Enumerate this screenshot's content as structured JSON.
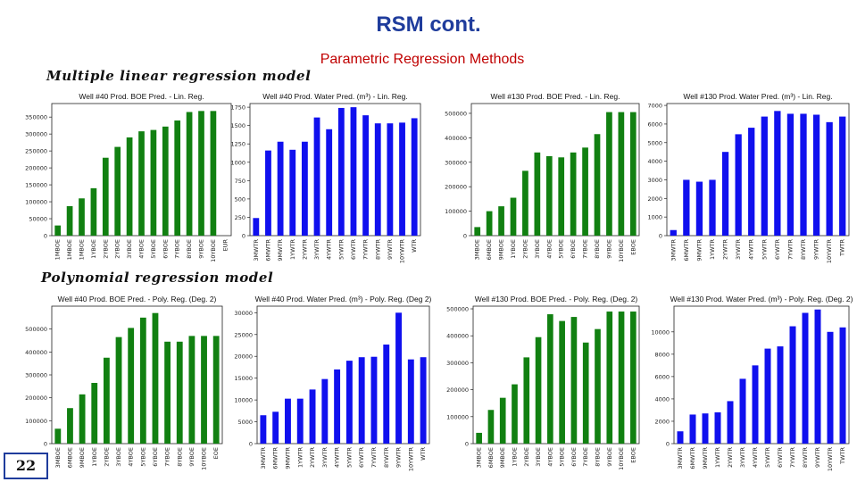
{
  "slide": {
    "title": "RSM cont.",
    "subtitle": "Parametric Regression Methods",
    "page_number": "22"
  },
  "sections": {
    "linear": "Multiple linear regression model",
    "poly": "Polynomial regression model"
  },
  "colors": {
    "green": "#118011",
    "blue": "#1010ee",
    "title": "#1f3c9c",
    "subtitle": "#c00000"
  },
  "chart_data": [
    {
      "type": "bar",
      "title": "Well #40 Prod. BOE Pred. - Lin. Reg.",
      "color": "#118011",
      "categories": [
        "1MBOE",
        "1MBOE",
        "1MBOE",
        "1YBOE",
        "2YBOE",
        "2YBOE",
        "3YBOE",
        "4YBOE",
        "5YBOE",
        "6YBOE",
        "7YBOE",
        "8YBOE",
        "9YBOE",
        "10YBOE",
        "EUR"
      ],
      "values": [
        30000,
        87000,
        110000,
        140000,
        230000,
        262000,
        290000,
        308000,
        312000,
        322000,
        340000,
        365000,
        368000,
        368000,
        0
      ],
      "yticks": [
        0,
        50000,
        100000,
        150000,
        200000,
        250000,
        300000,
        350000
      ],
      "ylim": [
        0,
        390000
      ]
    },
    {
      "type": "bar",
      "title": "Well #40 Prod. Water Pred. (m³) - Lin. Reg.",
      "color": "#1010ee",
      "categories": [
        "3MWTR",
        "6MWTR",
        "9MWTR",
        "1YWTR",
        "2YWTR",
        "3YWTR",
        "4YWTR",
        "5YWTR",
        "6YWTR",
        "7YWTR",
        "8YWTR",
        "9YWTR",
        "10YWTR",
        "WTR"
      ],
      "values": [
        240,
        1160,
        1280,
        1170,
        1280,
        1610,
        1450,
        1740,
        1750,
        1640,
        1530,
        1530,
        1540,
        1600
      ],
      "yticks": [
        0,
        250,
        500,
        750,
        1000,
        1250,
        1500,
        1750
      ],
      "ylim": [
        0,
        1800
      ]
    },
    {
      "type": "bar",
      "title": "Well #130 Prod. BOE Pred. - Lin. Reg.",
      "color": "#118011",
      "categories": [
        "3MBOE",
        "6MBOE",
        "9MBOE",
        "1YBOE",
        "2YBOE",
        "3YBOE",
        "4YBOE",
        "5YBOE",
        "6YBOE",
        "7YBOE",
        "8YBOE",
        "9YBOE",
        "10YBOE",
        "EBOE"
      ],
      "values": [
        35000,
        100000,
        120000,
        155000,
        265000,
        340000,
        325000,
        320000,
        340000,
        360000,
        415000,
        505000,
        505000,
        505000
      ],
      "yticks": [
        0,
        100000,
        200000,
        300000,
        400000,
        500000
      ],
      "ylim": [
        0,
        540000
      ]
    },
    {
      "type": "bar",
      "title": "Well #130 Prod. Water Pred. (m³) - Lin. Reg.",
      "color": "#1010ee",
      "categories": [
        "3MWTR",
        "6MWTR",
        "9MWTR",
        "1YWTR",
        "2YWTR",
        "3YWTR",
        "4YWTR",
        "5YWTR",
        "6YWTR",
        "7YWTR",
        "8YWTR",
        "9YWTR",
        "10YWTR",
        "TWTR"
      ],
      "values": [
        300,
        3000,
        2900,
        3000,
        4500,
        5450,
        5800,
        6400,
        6700,
        6550,
        6550,
        6500,
        6100,
        6400
      ],
      "yticks": [
        0,
        1000,
        2000,
        3000,
        4000,
        5000,
        6000,
        7000
      ],
      "ylim": [
        0,
        7100
      ]
    },
    {
      "type": "bar",
      "title": "Well #40 Prod. BOE Pred. - Poly. Reg. (Deg. 2)",
      "color": "#118011",
      "categories": [
        "3MBOE",
        "6MBOE",
        "9MBOE",
        "1YBOE",
        "2YBOE",
        "3YBOE",
        "4YBOE",
        "5YBOE",
        "6YBOE",
        "7YBOE",
        "8YBOE",
        "9YBOE",
        "10YBOE",
        "EOE"
      ],
      "values": [
        65000,
        155000,
        215000,
        265000,
        375000,
        465000,
        505000,
        550000,
        570000,
        445000,
        445000,
        470000,
        470000,
        470000
      ],
      "yticks": [
        0,
        100000,
        200000,
        300000,
        400000,
        500000
      ],
      "ylim": [
        0,
        600000
      ]
    },
    {
      "type": "bar",
      "title": "Well #40 Prod. Water Pred. (m³) - Poly. Reg. (Deg 2)",
      "color": "#1010ee",
      "categories": [
        "3MWTR",
        "6MWTR",
        "9MWTR",
        "1YWTR",
        "2YWTR",
        "3YWTR",
        "4YWTR",
        "5YWTR",
        "6YWTR",
        "7YWTR",
        "8YWTR",
        "9YWTR",
        "10YWTR",
        "WTR"
      ],
      "values": [
        6500,
        7300,
        10300,
        10300,
        12400,
        14800,
        17000,
        19000,
        19800,
        19900,
        22700,
        30000,
        19300,
        19800
      ],
      "yticks": [
        0,
        5000,
        10000,
        15000,
        20000,
        25000,
        30000
      ],
      "ylim": [
        0,
        31500
      ]
    },
    {
      "type": "bar",
      "title": "Well #130 Prod. BOE Pred. - Poly. Reg. (Deg. 2)",
      "color": "#118011",
      "categories": [
        "3MBOE",
        "6MBOE",
        "9MBOE",
        "1YBOE",
        "2YBOE",
        "3YBOE",
        "4YBOE",
        "5YBOE",
        "6YBOE",
        "7YBOE",
        "8YBOE",
        "9YBOE",
        "10YBOE",
        "EBOE"
      ],
      "values": [
        40000,
        125000,
        170000,
        220000,
        320000,
        395000,
        480000,
        455000,
        470000,
        375000,
        425000,
        490000,
        490000,
        490000
      ],
      "yticks": [
        0,
        100000,
        200000,
        300000,
        400000,
        500000
      ],
      "ylim": [
        0,
        510000
      ]
    },
    {
      "type": "bar",
      "title": "Well #130 Prod. Water Pred. (m³) - Poly. Reg. (Deg. 2)",
      "color": "#1010ee",
      "categories": [
        "3MWTR",
        "6MWTR",
        "9MWTR",
        "1YWTR",
        "2YWTR",
        "3YWTR",
        "4YWTR",
        "5YWTR",
        "6YWTR",
        "7YWTR",
        "8YWTR",
        "9YWTR",
        "10YWTR",
        "TWTR"
      ],
      "values": [
        1100,
        2600,
        2700,
        2800,
        3800,
        5800,
        7000,
        8500,
        8700,
        10500,
        11700,
        12000,
        10000,
        10400
      ],
      "yticks": [
        0,
        2000,
        4000,
        6000,
        8000,
        10000
      ],
      "ylim": [
        0,
        12300
      ]
    }
  ]
}
